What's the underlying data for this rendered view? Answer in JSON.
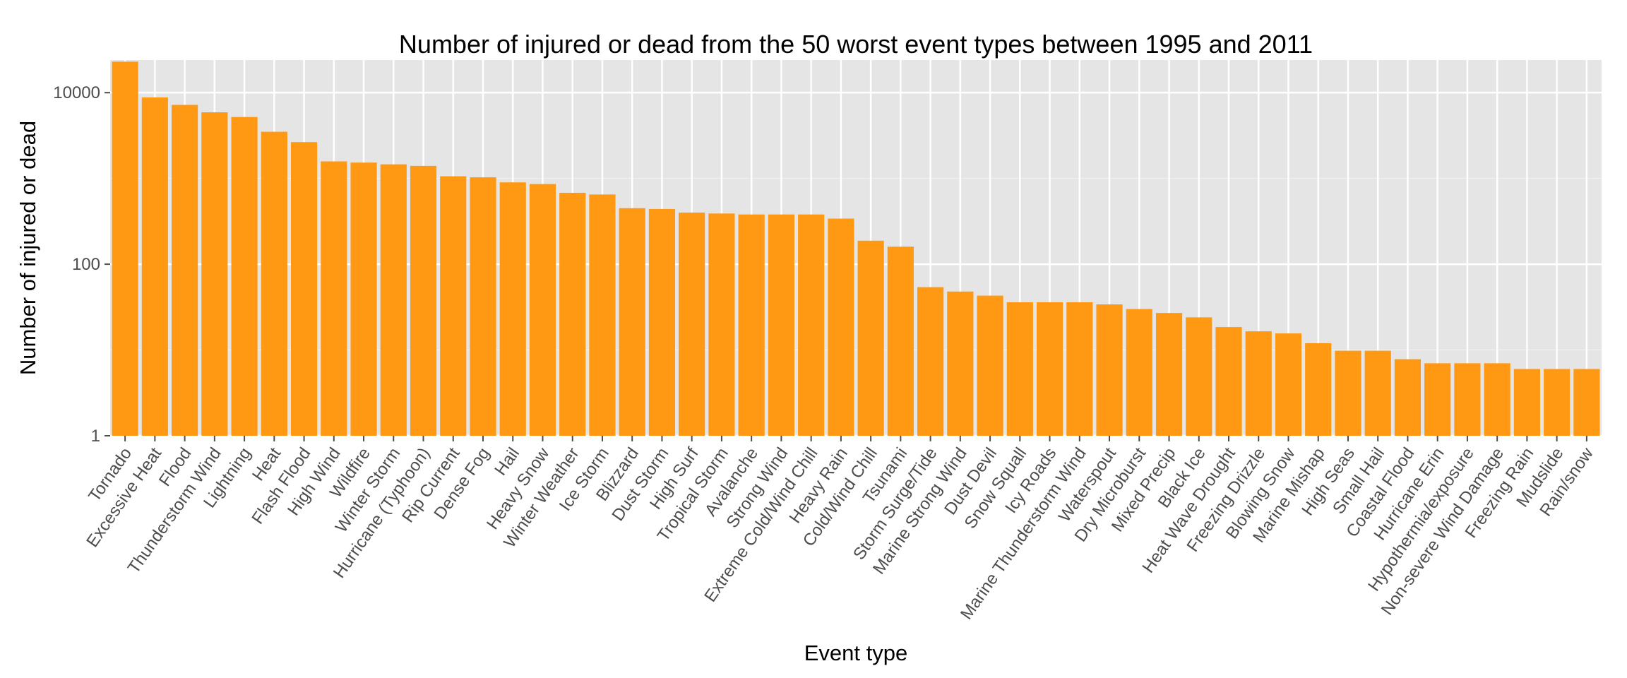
{
  "chart_data": {
    "type": "bar",
    "title": "Number of injured or dead from the 50 worst event types between 1995 and 2011",
    "xlabel": "Event type",
    "ylabel": "Number of injured or dead",
    "yscale": "log10",
    "ylim": [
      1,
      24000
    ],
    "yticks": [
      1,
      100,
      10000
    ],
    "ytick_labels": [
      "1",
      "100",
      "10000"
    ],
    "grid": true,
    "bar_color": "#ff9913",
    "panel_color": "#e5e5e5",
    "grid_color": "#ffffff",
    "categories": [
      "Tornado",
      "Excessive Heat",
      "Flood",
      "Thunderstorm Wind",
      "Lightning",
      "Heat",
      "Flash Flood",
      "High Wind",
      "Wildfire",
      "Winter Storm",
      "Hurricane (Typhoon)",
      "Rip Current",
      "Dense Fog",
      "Hail",
      "Heavy Snow",
      "Winter Weather",
      "Ice Storm",
      "Blizzard",
      "Dust Storm",
      "High Surf",
      "Tropical Storm",
      "Avalanche",
      "Strong Wind",
      "Extreme Cold/Wind Chill",
      "Heavy Rain",
      "Cold/Wind Chill",
      "Tsunami",
      "Storm Surge/Tide",
      "Marine Strong Wind",
      "Dust Devil",
      "Snow Squall",
      "Icy Roads",
      "Marine Thunderstorm Wind",
      "Waterspout",
      "Dry Microburst",
      "Mixed Precip",
      "Black Ice",
      "Heat Wave Drought",
      "Freezing Drizzle",
      "Blowing Snow",
      "Marine Mishap",
      "High Seas",
      "Small Hail",
      "Coastal Flood",
      "Hurricane Erin",
      "Hypothermia/exposure",
      "Non-severe Wind Damage",
      "Freezing Rain",
      "Mudslide",
      "Rain/snow"
    ],
    "values": [
      23000,
      8800,
      7200,
      5900,
      5200,
      3500,
      2650,
      1580,
      1530,
      1460,
      1400,
      1060,
      1030,
      900,
      860,
      680,
      650,
      450,
      440,
      400,
      390,
      380,
      380,
      380,
      340,
      188,
      160,
      54,
      48,
      43,
      36,
      36,
      36,
      34,
      30,
      27,
      24,
      18.5,
      16.5,
      15.6,
      12,
      9.8,
      9.8,
      7.8,
      7,
      7,
      7,
      6,
      6,
      6
    ]
  }
}
